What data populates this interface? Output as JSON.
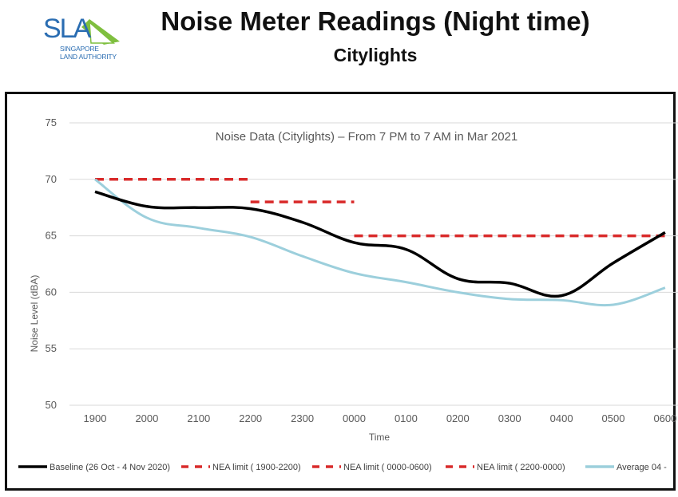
{
  "header": {
    "logo_text": "SLA",
    "logo_subtext_line1": "SINGAPORE",
    "logo_subtext_line2": "LAND AUTHORITY",
    "title": "Noise Meter Readings (Night time)",
    "subtitle": "Citylights"
  },
  "colors": {
    "logo_blue": "#2a6db2",
    "logo_green": "#7fbf3f",
    "baseline": "#000000",
    "nea_limit": "#d92b2b",
    "average": "#9ccfdc",
    "grid": "#d9d9d9"
  },
  "chart_data": {
    "type": "line",
    "title": "Noise Data (Citylights) – From 7 PM to 7 AM in Mar 2021",
    "xlabel": "Time",
    "ylabel": "Noise Level (dBA)",
    "ylim": [
      50,
      75
    ],
    "yticks": [
      50,
      55,
      60,
      65,
      70,
      75
    ],
    "grid": true,
    "legend_position": "bottom",
    "categories": [
      "1900",
      "2000",
      "2100",
      "2200",
      "2300",
      "0000",
      "0100",
      "0200",
      "0300",
      "0400",
      "0500",
      "0600"
    ],
    "series": [
      {
        "name": "Baseline (26 Oct - 4 Nov 2020)",
        "style": "solid",
        "color": "#000000",
        "values": [
          68.9,
          67.6,
          67.5,
          67.4,
          66.2,
          64.4,
          63.8,
          61.2,
          60.8,
          59.7,
          62.6,
          65.3
        ]
      },
      {
        "name": "NEA limit ( 1900-2200)",
        "style": "dashed",
        "color": "#d92b2b",
        "values": [
          70,
          70,
          70,
          70,
          null,
          null,
          null,
          null,
          null,
          null,
          null,
          null
        ]
      },
      {
        "name": "NEA limit  ( 0000-0600)",
        "style": "dashed",
        "color": "#d92b2b",
        "values": [
          null,
          null,
          null,
          null,
          null,
          65,
          65,
          65,
          65,
          65,
          65,
          65
        ]
      },
      {
        "name": "NEA limit ( 2200-0000)",
        "style": "dashed",
        "color": "#d92b2b",
        "values": [
          null,
          null,
          null,
          68,
          68,
          68,
          null,
          null,
          null,
          null,
          null,
          null
        ]
      },
      {
        "name": "Average 04 -",
        "style": "solid",
        "color": "#9ccfdc",
        "values": [
          70.0,
          66.6,
          65.7,
          64.9,
          63.2,
          61.7,
          60.9,
          60.0,
          59.4,
          59.3,
          58.9,
          60.4
        ]
      }
    ]
  }
}
